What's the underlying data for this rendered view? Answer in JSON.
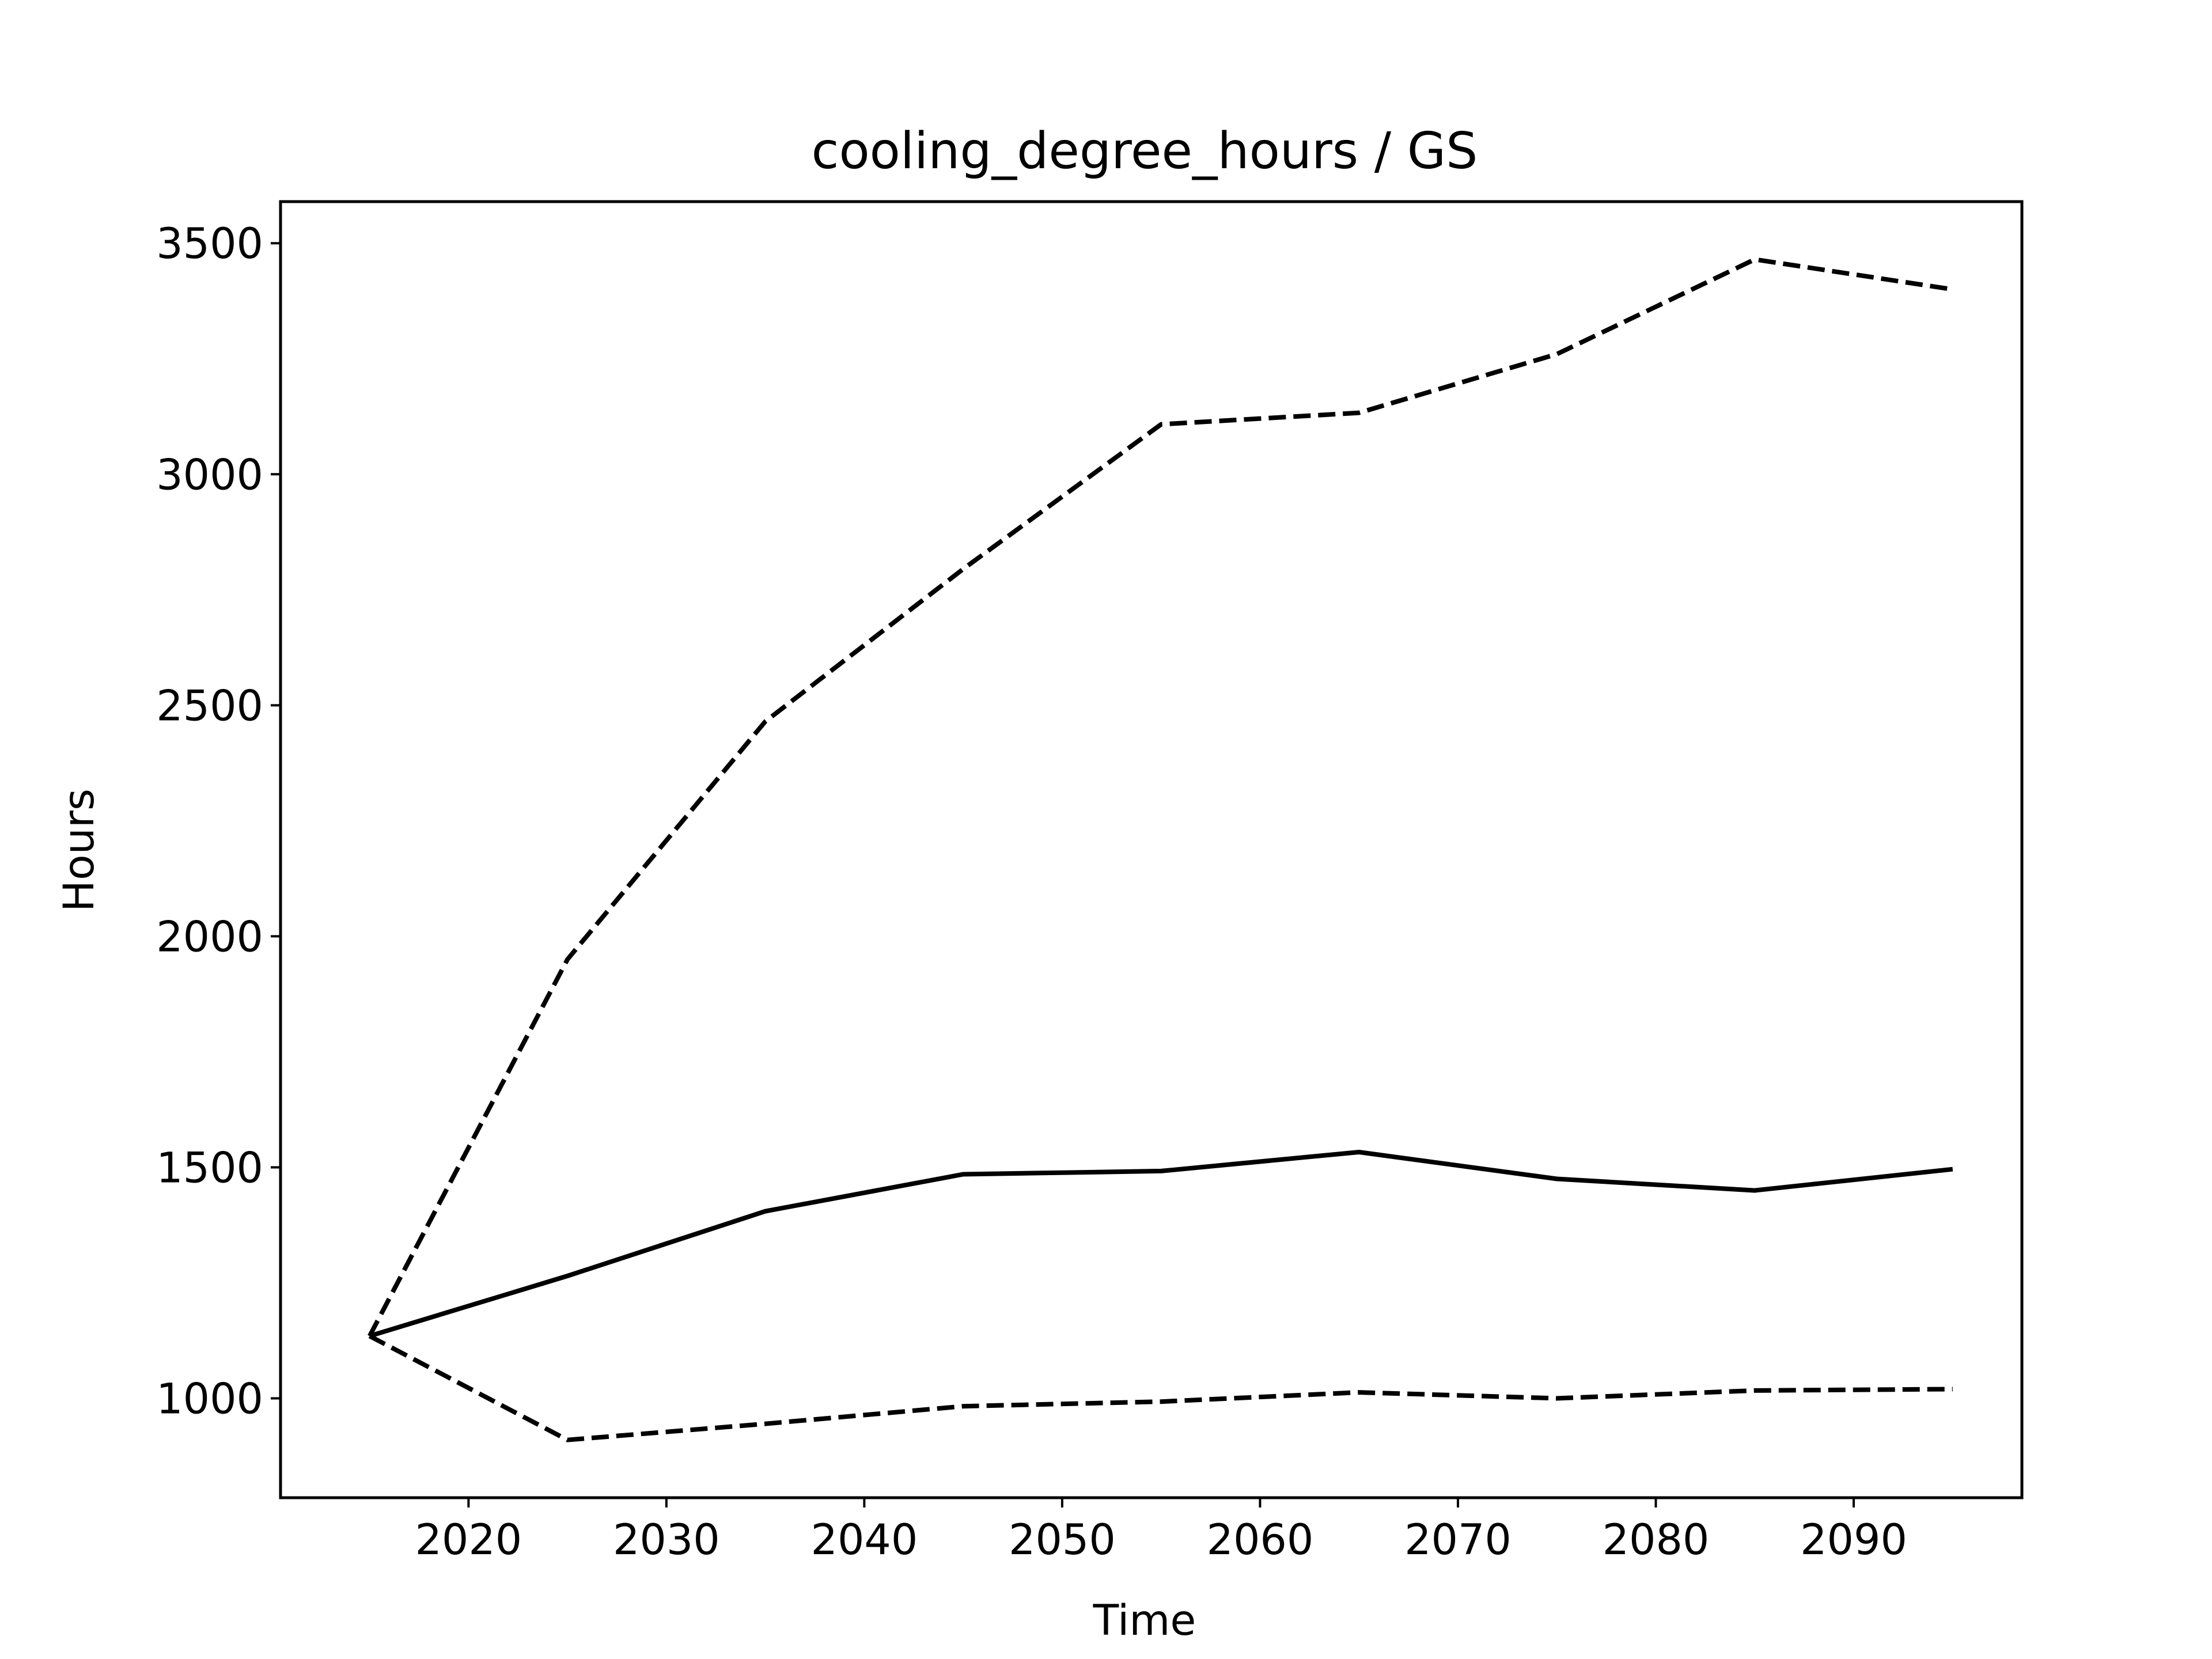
{
  "chart_data": {
    "type": "line",
    "title": "cooling_degree_hours / GS",
    "xlabel": "Time",
    "ylabel": "Hours",
    "xlim": [
      2010.5,
      2098.5
    ],
    "ylim": [
      785,
      3590
    ],
    "x_ticks": [
      2020,
      2030,
      2040,
      2050,
      2060,
      2070,
      2080,
      2090
    ],
    "x_tick_labels": [
      "2020",
      "2030",
      "2040",
      "2050",
      "2060",
      "2070",
      "2080",
      "2090"
    ],
    "y_ticks": [
      1000,
      1500,
      2000,
      2500,
      3000,
      3500
    ],
    "y_tick_labels": [
      "1000",
      "1500",
      "2000",
      "2500",
      "3000",
      "3500"
    ],
    "grid": false,
    "legend": "none",
    "x": [
      2015,
      2025,
      2035,
      2045,
      2055,
      2065,
      2075,
      2085,
      2095
    ],
    "series": [
      {
        "style": "solid",
        "color": "#000000",
        "values": [
          1135,
          1265,
          1405,
          1485,
          1492,
          1533,
          1475,
          1450,
          1496
        ]
      },
      {
        "style": "dashed",
        "color": "#000000",
        "values": [
          1135,
          1950,
          2465,
          2795,
          3108,
          3133,
          3260,
          3465,
          3400
        ]
      },
      {
        "style": "dashed",
        "color": "#000000",
        "values": [
          1135,
          910,
          945,
          983,
          993,
          1013,
          1000,
          1017,
          1020
        ]
      }
    ]
  }
}
